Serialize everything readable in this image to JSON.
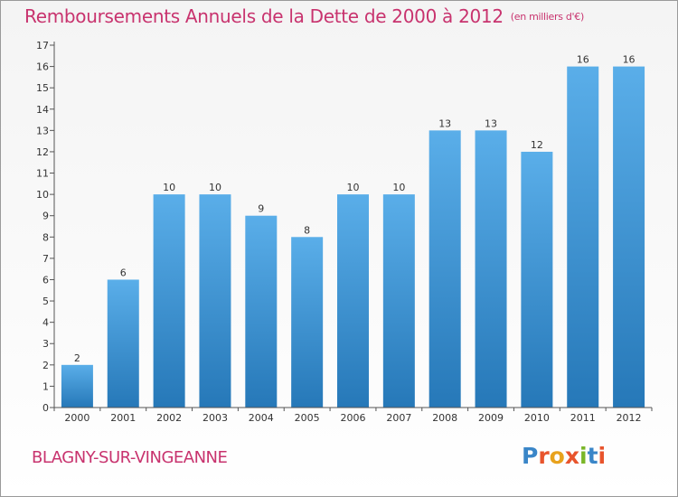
{
  "chart_data": {
    "type": "bar",
    "title": "Remboursements Annuels de la Dette de 2000 à 2012",
    "unit": "(en milliers d'€)",
    "categories": [
      "2000",
      "2001",
      "2002",
      "2003",
      "2004",
      "2005",
      "2006",
      "2007",
      "2008",
      "2009",
      "2010",
      "2011",
      "2012"
    ],
    "values": [
      2,
      6,
      10,
      10,
      9,
      8,
      10,
      10,
      13,
      13,
      12,
      16,
      16
    ],
    "data_labels": [
      "2",
      "6",
      "10",
      "10",
      "9",
      "8",
      "10",
      "10",
      "13",
      "13",
      "12",
      "16",
      "16"
    ],
    "ylim": [
      0,
      17
    ],
    "yticks": [
      "0",
      "1",
      "2",
      "3",
      "4",
      "5",
      "6",
      "7",
      "8",
      "9",
      "10",
      "11",
      "12",
      "13",
      "14",
      "15",
      "16",
      "17"
    ],
    "grid": false,
    "xlabel": "",
    "ylabel": "",
    "bar_color_top": "#5aaee9",
    "bar_color_bottom": "#2678b8"
  },
  "commune": "BLAGNY-SUR-VINGEANNE",
  "logo": {
    "letters": [
      "P",
      "r",
      "o",
      "x",
      "i",
      "t",
      "i"
    ],
    "colors": [
      "#3a86c8",
      "#e8542c",
      "#e8a21c",
      "#e8542c",
      "#7ab628",
      "#3a86c8",
      "#e8542c"
    ]
  }
}
